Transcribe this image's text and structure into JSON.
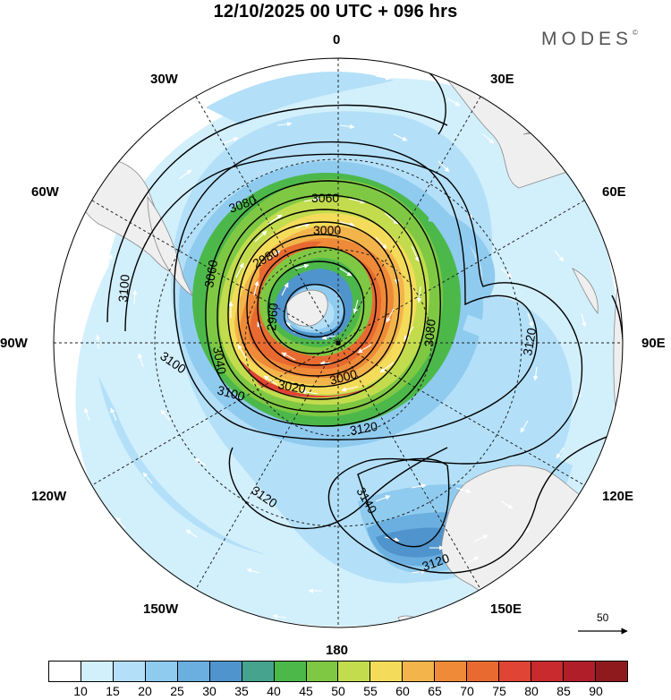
{
  "title": "12/10/2025  00 UTC  + 096 hrs",
  "brand": "MODES",
  "brand_mark": "©",
  "longitude_labels": {
    "top": "0",
    "e30": "30E",
    "e60": "60E",
    "e90": "90E",
    "e120": "120E",
    "e150": "150E",
    "bottom": "180",
    "w150": "150W",
    "w120": "120W",
    "w90": "90W",
    "w60": "60W",
    "w30": "30W"
  },
  "contour_labels": {
    "c3060": "3060",
    "c3080": "3080",
    "c3000_top": "3000",
    "c2980": "2980",
    "c2960": "2960",
    "c3040": "3040",
    "c3060_left": "3060",
    "c3100_left": "3100",
    "c3100_low": "3100",
    "c3100_bot": "3100",
    "c3020": "3020",
    "c3000_bot": "3000",
    "c3080_right": "3080",
    "c3120_right": "3120",
    "c3120_mid": "3120",
    "c3120_lowleft": "3120",
    "c3140": "3140",
    "c3120_bot": "3120"
  },
  "reference_vector": "50",
  "colorbar": {
    "colors": [
      "#ffffff",
      "#d2effc",
      "#b3e0f8",
      "#8fcbef",
      "#6aafe0",
      "#4f94cc",
      "#46a38d",
      "#4cb84a",
      "#7fc843",
      "#c2dc4e",
      "#f4dc5a",
      "#f3b54b",
      "#ef8b38",
      "#e86a30",
      "#e04434",
      "#c92a2e",
      "#b01e2a",
      "#8f1a1e"
    ],
    "labels": [
      "10",
      "15",
      "20",
      "25",
      "30",
      "35",
      "40",
      "45",
      "50",
      "55",
      "60",
      "65",
      "70",
      "75",
      "80",
      "85",
      "90"
    ]
  },
  "chart_data": {
    "type": "polar-stereographic map",
    "fields": [
      "wind speed (shaded)",
      "geopotential height contours",
      "wind vectors"
    ],
    "contour_levels": [
      2960,
      2980,
      3000,
      3020,
      3040,
      3060,
      3080,
      3100,
      3120,
      3140
    ],
    "shading_levels": [
      10,
      15,
      20,
      25,
      30,
      35,
      40,
      45,
      50,
      55,
      60,
      65,
      70,
      75,
      80,
      85,
      90
    ]
  }
}
